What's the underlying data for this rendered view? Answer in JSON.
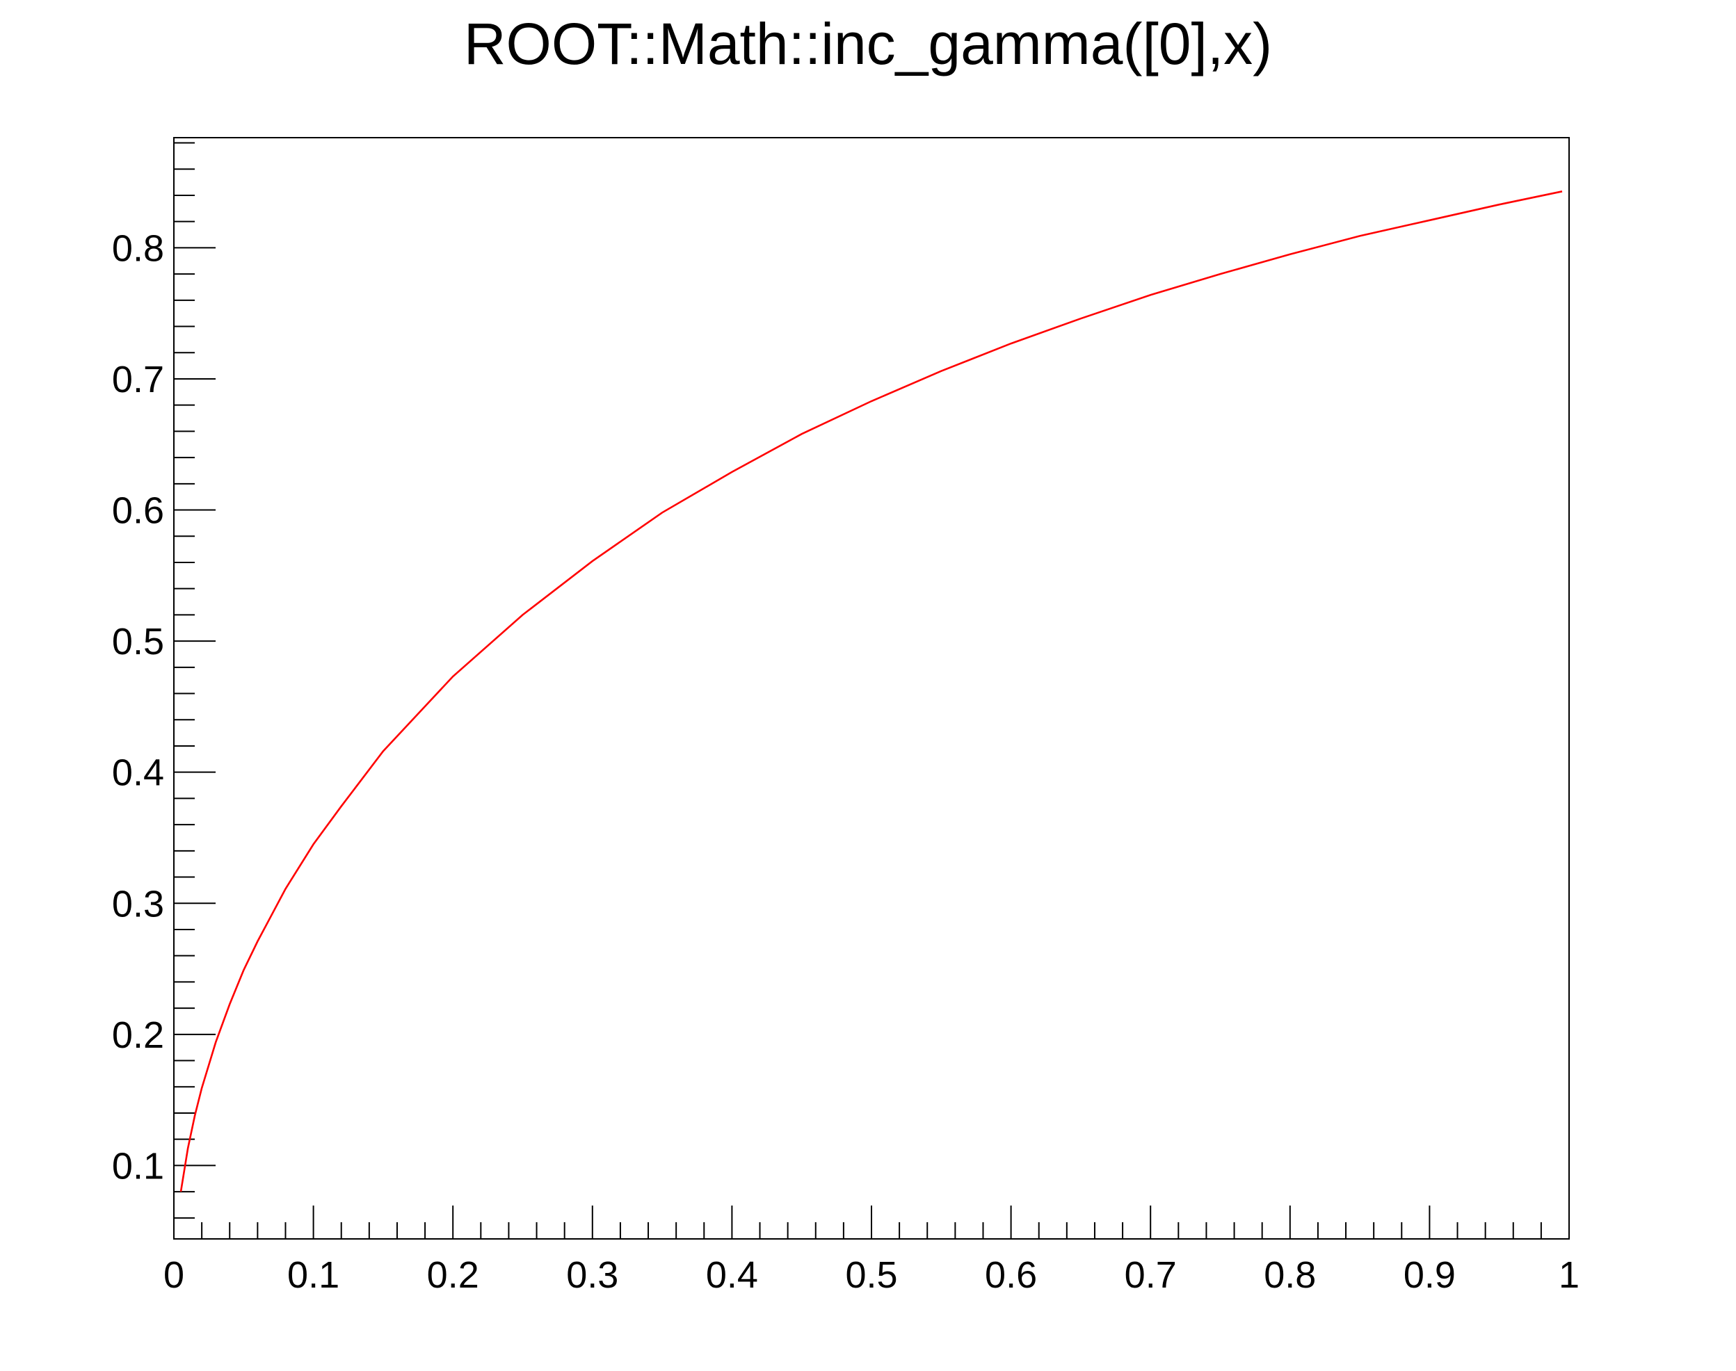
{
  "chart_data": {
    "type": "line",
    "title": "ROOT::Math::inc_gamma([0],x)",
    "xlabel": "",
    "ylabel": "",
    "xlim": [
      0,
      1
    ],
    "ylim": [
      0.044,
      0.884
    ],
    "x_ticks": [
      0,
      0.1,
      0.2,
      0.3,
      0.4,
      0.5,
      0.6,
      0.7,
      0.8,
      0.9,
      1
    ],
    "x_tick_labels": [
      "0",
      "0.1",
      "0.2",
      "0.3",
      "0.4",
      "0.5",
      "0.6",
      "0.7",
      "0.8",
      "0.9",
      "1"
    ],
    "y_ticks": [
      0.1,
      0.2,
      0.3,
      0.4,
      0.5,
      0.6,
      0.7,
      0.8
    ],
    "y_tick_labels": [
      "0.1",
      "0.2",
      "0.3",
      "0.4",
      "0.5",
      "0.6",
      "0.7",
      "0.8"
    ],
    "grid": false,
    "series": [
      {
        "color": "#ff0000",
        "x": [
          0.005,
          0.01,
          0.015,
          0.02,
          0.03,
          0.04,
          0.05,
          0.06,
          0.08,
          0.1,
          0.12,
          0.15,
          0.2,
          0.25,
          0.3,
          0.35,
          0.4,
          0.45,
          0.5,
          0.55,
          0.6,
          0.65,
          0.7,
          0.75,
          0.8,
          0.85,
          0.9,
          0.95,
          0.995
        ],
        "y": [
          0.08,
          0.113,
          0.138,
          0.159,
          0.194,
          0.223,
          0.249,
          0.271,
          0.311,
          0.345,
          0.374,
          0.416,
          0.473,
          0.52,
          0.561,
          0.598,
          0.629,
          0.658,
          0.683,
          0.706,
          0.727,
          0.746,
          0.764,
          0.78,
          0.795,
          0.809,
          0.821,
          0.833,
          0.843
        ]
      }
    ]
  }
}
